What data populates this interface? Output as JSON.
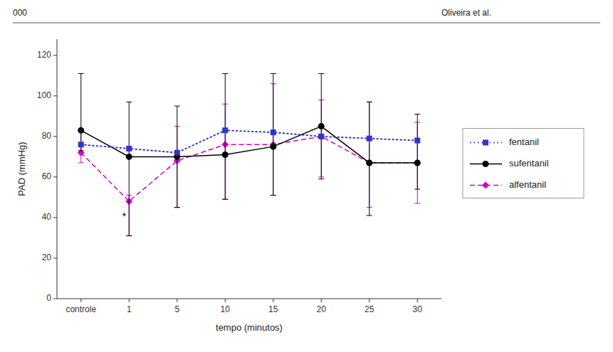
{
  "chart_data": {
    "type": "line",
    "categories": [
      "controle",
      "1",
      "5",
      "10",
      "15",
      "20",
      "25",
      "30"
    ],
    "series": [
      {
        "name": "fentanil",
        "color": "#3333cc",
        "marker": "square",
        "line_style": "dotted",
        "values": [
          76,
          74,
          72,
          83,
          82,
          80,
          79,
          78
        ]
      },
      {
        "name": "sufentanil",
        "color": "#000000",
        "marker": "circle",
        "line_style": "solid",
        "values": [
          83,
          70,
          70,
          71,
          75,
          85,
          67,
          67
        ],
        "error_low": [
          10,
          39,
          25,
          22,
          24,
          26,
          26,
          13
        ],
        "error_high": [
          28,
          27,
          25,
          40,
          36,
          26,
          30,
          24
        ]
      },
      {
        "name": "alfentanil",
        "color": "#cc00cc",
        "marker": "diamond",
        "line_style": "dashed",
        "values": [
          72,
          48,
          68,
          76,
          76,
          80,
          67,
          67
        ],
        "error_low": [
          5,
          17,
          23,
          27,
          25,
          20,
          22,
          20
        ],
        "error_high": [
          11,
          3,
          17,
          20,
          30,
          18,
          30,
          20
        ]
      }
    ],
    "xlabel": "tempo (minutos)",
    "ylabel": "PAD (mmHg)",
    "ylim": [
      0,
      128
    ],
    "yticks": [
      0,
      20,
      40,
      60,
      80,
      100,
      120
    ],
    "grid": false,
    "legend": "right",
    "annotations": [
      {
        "text": "*",
        "category": "1",
        "y": 43
      },
      {
        "text": "000"
      },
      {
        "text": "Oliveira et al."
      }
    ]
  }
}
